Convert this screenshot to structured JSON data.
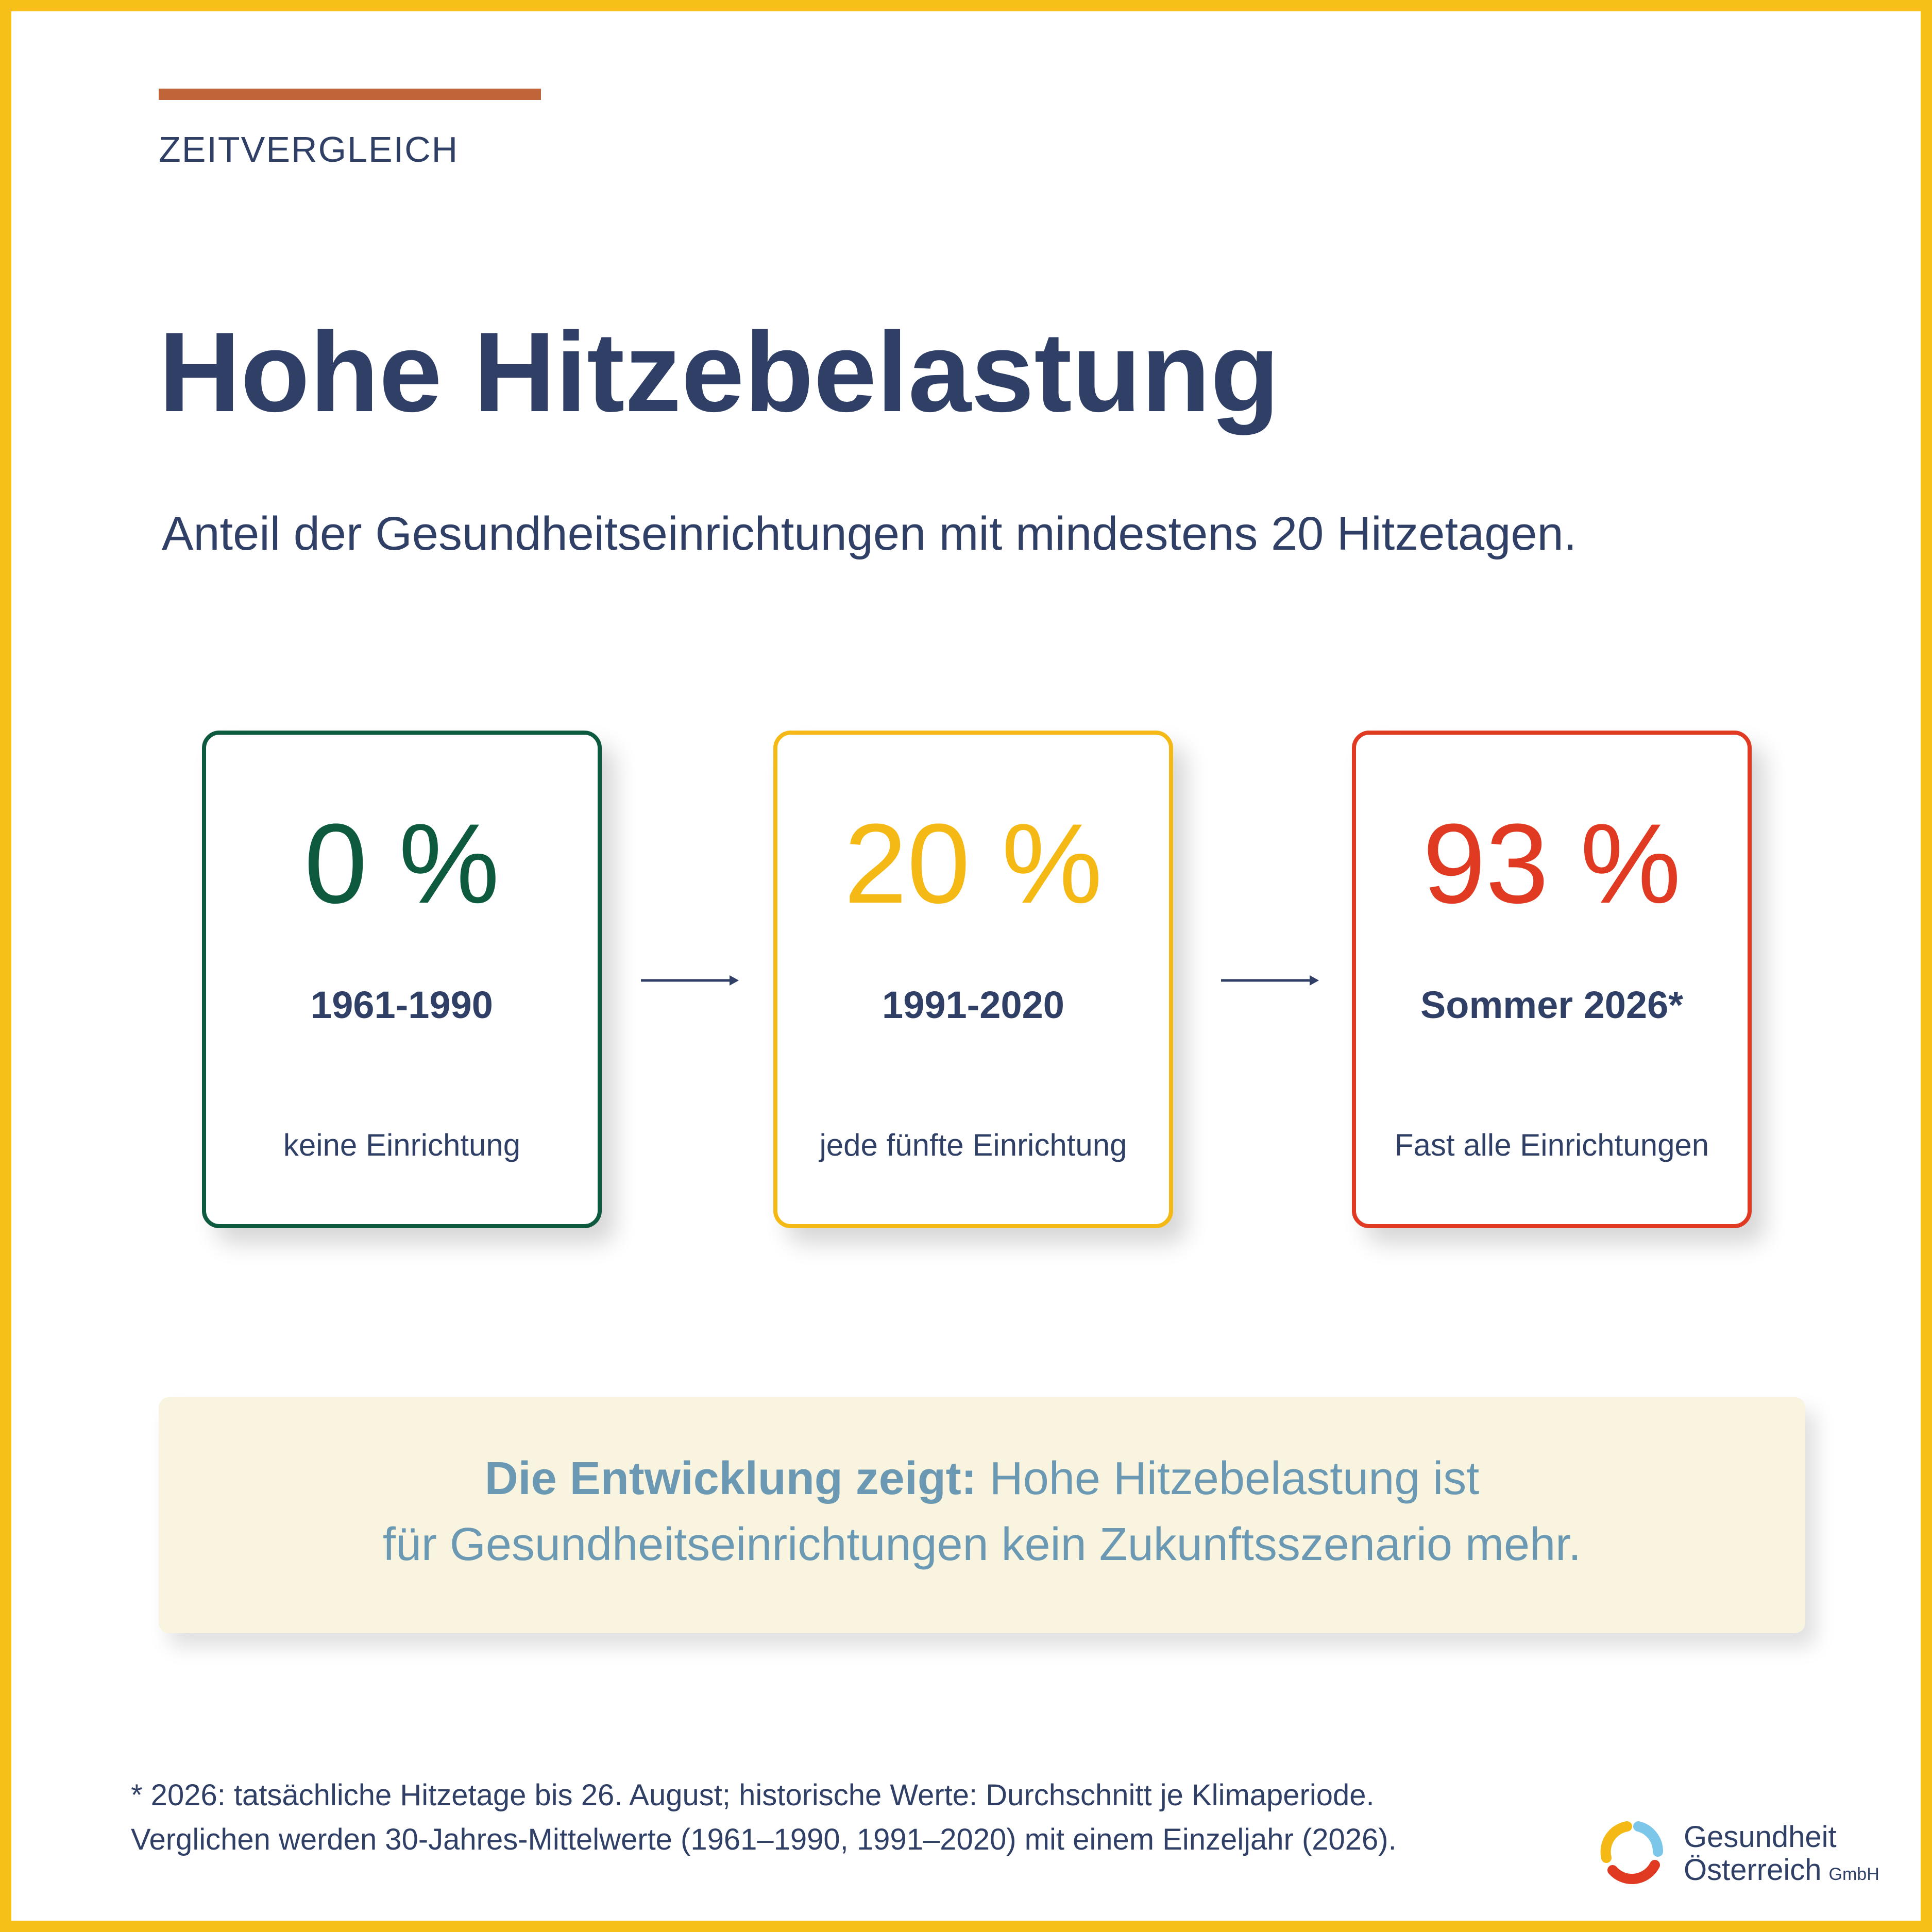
{
  "header": {
    "section_label": "ZEITVERGLEICH",
    "title": "Hohe Hitzebelastung",
    "subtitle": "Anteil der Gesundheitseinrichtungen mit mindestens 20 Hitzetagen."
  },
  "cards": [
    {
      "value": "0 %",
      "period": "1961-1990",
      "description": "keine Einrichtung",
      "color": "#0e5a3f"
    },
    {
      "value": "20 %",
      "period": "1991-2020",
      "description": "jede fünfte Einrichtung",
      "color": "#f5b915"
    },
    {
      "value": "93 %",
      "period": "Sommer 2026*",
      "description": "Fast alle Einrichtungen",
      "color": "#e03a22"
    }
  ],
  "callout": {
    "lead": "Die Entwicklung zeigt:",
    "text_line1": " Hohe Hitzebelastung ist",
    "text_line2": "für Gesundheitseinrichtungen kein Zukunftsszenario mehr."
  },
  "footnote": {
    "line1": "* 2026: tatsächliche Hitzetage bis 26. August; historische Werte: Durchschnitt je Klimaperiode.",
    "line2": "Verglichen werden 30-Jahres-Mittelwerte (1961–1990, 1991–2020) mit einem Einzeljahr (2026)."
  },
  "logo": {
    "line1": "Gesundheit",
    "line2": "Österreich",
    "suffix": "GmbH",
    "icon": "ring-logo-icon"
  },
  "colors": {
    "frame": "#f5c118",
    "accent_rule": "#c0643a",
    "text": "#2f3f66",
    "callout_bg": "#f8f4df",
    "callout_text": "#6b99b3"
  }
}
